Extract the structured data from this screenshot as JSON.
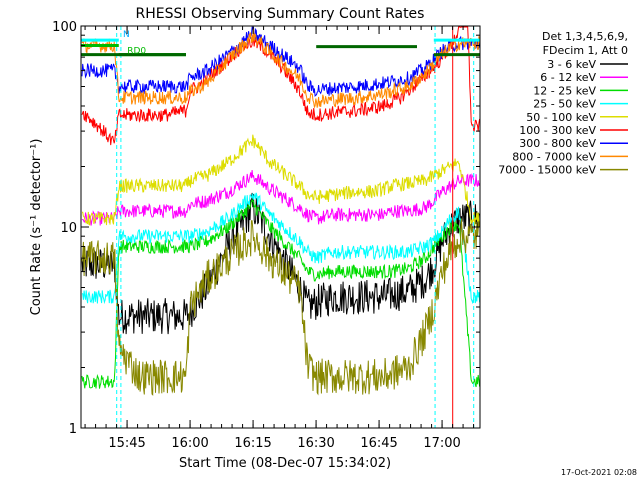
{
  "chart_data": {
    "type": "line",
    "title": "RHESSI Observing Summary Count Rates",
    "xlabel": "Start Time (08-Dec-07 15:34:02)",
    "ylabel": "Count Rate (s⁻¹ detector⁻¹)",
    "xlim_minutes_from_start": [
      0,
      95
    ],
    "ylim": [
      1,
      100
    ],
    "yscale": "log",
    "grid": false,
    "x_ticks": [
      {
        "label": "15:45",
        "t": 10.97
      },
      {
        "label": "16:00",
        "t": 25.97
      },
      {
        "label": "16:15",
        "t": 40.97
      },
      {
        "label": "16:30",
        "t": 55.97
      },
      {
        "label": "16:45",
        "t": 70.97
      },
      {
        "label": "17:00",
        "t": 85.97
      }
    ],
    "y_ticks": [
      {
        "label": "1",
        "v": 1
      },
      {
        "label": "10",
        "v": 10
      },
      {
        "label": "100",
        "v": 100
      }
    ],
    "legend_header": [
      "Det 1,3,4,5,6,9,",
      "FDecim 1, Att 0"
    ],
    "legend_position": "right",
    "series": [
      {
        "name": "3 - 6 keV",
        "color": "#000000",
        "t": [
          0,
          8,
          9,
          25,
          26,
          30,
          35,
          41,
          45,
          52,
          54,
          56,
          60,
          66,
          70,
          72,
          74,
          78,
          82,
          84,
          86,
          88,
          90,
          93,
          95
        ],
        "v": [
          6.5,
          6.5,
          3.6,
          3.6,
          3.8,
          5,
          8,
          12.5,
          9,
          5,
          4,
          4.2,
          4.5,
          4.5,
          4.5,
          4.5,
          4.6,
          4.8,
          5.5,
          6.5,
          8.5,
          10,
          11,
          11,
          11
        ]
      },
      {
        "name": "6 - 12 keV",
        "color": "#ff00ff",
        "t": [
          0,
          8,
          9,
          25,
          26,
          30,
          35,
          41,
          45,
          52,
          54,
          56,
          60,
          66,
          70,
          72,
          74,
          78,
          82,
          84,
          86,
          88,
          90,
          93,
          95
        ],
        "v": [
          11,
          11,
          12,
          12,
          13,
          13.5,
          15,
          18,
          15.5,
          12.5,
          11.5,
          11,
          11.5,
          11.5,
          11.5,
          11.5,
          12,
          12,
          12.5,
          13.5,
          15,
          16,
          17,
          17,
          17
        ]
      },
      {
        "name": "12 - 25 keV",
        "color": "#00dd00",
        "t": [
          0,
          8,
          9,
          25,
          26,
          30,
          35,
          41,
          45,
          52,
          54,
          56,
          60,
          66,
          70,
          72,
          74,
          78,
          82,
          84,
          86,
          88,
          90,
          93,
          95
        ],
        "v": [
          1.7,
          1.7,
          8,
          8,
          8,
          8.5,
          10,
          13,
          10,
          7,
          6,
          5.8,
          6,
          6,
          6,
          6,
          6,
          6.2,
          7,
          8,
          9,
          10,
          10.5,
          1.7,
          1.7
        ]
      },
      {
        "name": "25 - 50 keV",
        "color": "#00ffff",
        "t": [
          0,
          8,
          9,
          25,
          26,
          30,
          35,
          41,
          45,
          52,
          54,
          56,
          60,
          66,
          70,
          72,
          74,
          78,
          82,
          84,
          86,
          88,
          90,
          93,
          95
        ],
        "v": [
          4.5,
          4.5,
          9,
          9,
          9,
          9.5,
          11,
          14.5,
          11.5,
          8.5,
          7.5,
          7,
          7.5,
          7.5,
          7.5,
          7.5,
          7.5,
          7.5,
          8,
          8.5,
          9.5,
          11,
          12,
          4.5,
          4.5
        ]
      },
      {
        "name": "50 - 100 keV",
        "color": "#dddd00",
        "t": [
          0,
          8,
          9,
          25,
          26,
          30,
          35,
          41,
          45,
          52,
          54,
          56,
          60,
          66,
          70,
          72,
          74,
          78,
          82,
          84,
          86,
          88,
          90,
          93,
          95
        ],
        "v": [
          11,
          11,
          16,
          16,
          17,
          18,
          21,
          27,
          21,
          16,
          14.5,
          14,
          14.5,
          15,
          15,
          15.5,
          16,
          16.5,
          17,
          18,
          19,
          20,
          21,
          11,
          11
        ]
      },
      {
        "name": "100 - 300 keV",
        "color": "#ff0000",
        "t": [
          0,
          4,
          8,
          9,
          20,
          25,
          26,
          28,
          30,
          34,
          38,
          41,
          44,
          48,
          52,
          54,
          56,
          60,
          66,
          72,
          76,
          80,
          84,
          86,
          88,
          90,
          92,
          93,
          95
        ],
        "v": [
          38,
          32,
          26,
          36,
          36,
          38,
          48,
          50,
          55,
          65,
          78,
          84,
          76,
          62,
          48,
          37,
          36,
          37,
          38,
          40,
          44,
          52,
          62,
          70,
          80,
          95,
          110,
          31,
          32
        ]
      },
      {
        "name": "300 - 800 keV",
        "color": "#0000ff",
        "t": [
          0,
          8,
          9,
          25,
          26,
          30,
          35,
          41,
          45,
          52,
          54,
          56,
          60,
          66,
          72,
          78,
          82,
          84,
          86,
          88,
          90,
          93,
          95
        ],
        "v": [
          60,
          60,
          50,
          50,
          55,
          60,
          72,
          92,
          80,
          62,
          50,
          48,
          49,
          50,
          52,
          55,
          62,
          68,
          75,
          80,
          82,
          82,
          82
        ]
      },
      {
        "name": "800 - 7000 keV",
        "color": "#ff8800",
        "t": [
          0,
          8,
          9,
          25,
          26,
          30,
          35,
          41,
          45,
          52,
          54,
          56,
          60,
          66,
          72,
          78,
          82,
          84,
          86,
          88,
          90,
          93,
          95
        ],
        "v": [
          80,
          80,
          44,
          44,
          47,
          52,
          68,
          90,
          74,
          55,
          45,
          42,
          43,
          44,
          46,
          50,
          58,
          65,
          72,
          78,
          82,
          82,
          82
        ]
      },
      {
        "name": "7000 - 15000 keV",
        "color": "#888800",
        "t": [
          0,
          8,
          9,
          14,
          20,
          25,
          26,
          30,
          35,
          41,
          45,
          52,
          54,
          56,
          60,
          66,
          72,
          78,
          82,
          84,
          86,
          88,
          90,
          93,
          95
        ],
        "v": [
          7,
          7,
          2.5,
          1.8,
          1.8,
          1.8,
          4,
          5.5,
          7,
          9,
          7,
          5,
          2,
          1.8,
          1.8,
          1.8,
          1.8,
          2,
          3,
          4,
          6,
          7.5,
          9,
          9,
          9
        ]
      }
    ],
    "state_bars": [
      {
        "label": "RD0",
        "color": "#00bb00",
        "t": [
          0,
          9
        ],
        "v": 80
      },
      {
        "label": "RD0",
        "color": "#00bb00",
        "t": [
          9,
          25
        ],
        "v": 72
      },
      {
        "label": "",
        "color": "#00bb00",
        "t": [
          9,
          25
        ],
        "v": 72
      },
      {
        "label": "",
        "color": "#006600",
        "t": [
          0,
          25
        ],
        "v": 72
      },
      {
        "label": "",
        "color": "#006600",
        "t": [
          56,
          80
        ],
        "v": 79
      },
      {
        "label": "",
        "color": "#006600",
        "t": [
          84,
          95
        ],
        "v": 72
      }
    ],
    "annotations": [
      {
        "text": "N",
        "color": "#00aaff",
        "t": 10,
        "v": 88
      },
      {
        "text": "RD0",
        "color": "#00bb00",
        "t": 11,
        "v": 73
      }
    ],
    "event_marks": [
      {
        "type": "night",
        "color": "#00ffff",
        "t": [
          8.5,
          9.5
        ]
      },
      {
        "type": "night",
        "color": "#00ffff",
        "t": [
          84.3,
          84.3
        ]
      },
      {
        "type": "night",
        "color": "#00ffff",
        "t": [
          93.5,
          93.5
        ]
      },
      {
        "type": "saa",
        "color": "#ff0000",
        "t": [
          88.5,
          88.5
        ]
      }
    ],
    "night_bars_top": [
      {
        "color": "#00ffff",
        "t": [
          0,
          9
        ],
        "v": 85
      },
      {
        "color": "#00ffff",
        "t": [
          84,
          95
        ],
        "v": 85
      }
    ]
  },
  "footer": {
    "timestamp": "17-Oct-2021 02:08"
  }
}
